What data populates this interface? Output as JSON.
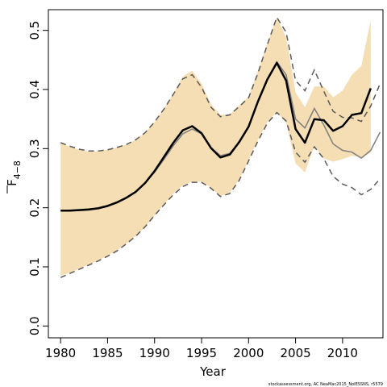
{
  "chart_data": {
    "type": "line",
    "title": "",
    "xlabel": "Year",
    "ylabel": "F̅ 4−8",
    "ylabel_main": "F",
    "ylabel_sub": "4−8",
    "xlim": [
      1978.7,
      2014.3
    ],
    "ylim": [
      -0.02,
      0.535
    ],
    "x_ticks": [
      1980,
      1985,
      1990,
      1995,
      2000,
      2005,
      2010
    ],
    "x_tick_labels": [
      "1980",
      "1985",
      "1990",
      "1995",
      "2000",
      "2005",
      "2010"
    ],
    "y_ticks": [
      0.0,
      0.1,
      0.2,
      0.3,
      0.4,
      0.5
    ],
    "y_tick_labels": [
      "0.0",
      "0.1",
      "0.2",
      "0.3",
      "0.4",
      "0.5"
    ],
    "grid": false,
    "legend": "none",
    "footnote": "stockassessment.org, AC NeaMac2015_NoIESSNS, r5579",
    "colors": {
      "band": "#f5deb3",
      "estimate": "#000000",
      "reference": "#7f7f7f",
      "dashed": "#5a5a5a"
    },
    "x": [
      1980,
      1981,
      1982,
      1983,
      1984,
      1985,
      1986,
      1987,
      1988,
      1989,
      1990,
      1991,
      1992,
      1993,
      1994,
      1995,
      1996,
      1997,
      1998,
      1999,
      2000,
      2001,
      2002,
      2003,
      2004,
      2005,
      2006,
      2007,
      2008,
      2009,
      2010,
      2011,
      2012,
      2013,
      2014
    ],
    "series": [
      {
        "role": "band",
        "lower": [
          0.085,
          0.09,
          0.097,
          0.104,
          0.111,
          0.119,
          0.128,
          0.139,
          0.152,
          0.168,
          0.187,
          0.206,
          0.224,
          0.238,
          0.244,
          0.244,
          0.234,
          0.22,
          0.225,
          0.248,
          0.28,
          0.315,
          0.345,
          0.362,
          0.343,
          0.275,
          0.26,
          0.305,
          0.283,
          0.278,
          0.282,
          0.288,
          0.285,
          0.293,
          null
        ],
        "upper": [
          0.31,
          0.303,
          0.298,
          0.295,
          0.295,
          0.298,
          0.302,
          0.307,
          0.315,
          0.327,
          0.345,
          0.368,
          0.393,
          0.422,
          0.432,
          0.41,
          0.375,
          0.357,
          0.358,
          0.373,
          0.388,
          0.432,
          0.478,
          0.522,
          0.488,
          0.395,
          0.37,
          0.405,
          0.405,
          0.387,
          0.398,
          0.425,
          0.44,
          0.517,
          null
        ]
      },
      {
        "role": "estimate",
        "values": [
          0.195,
          0.195,
          0.196,
          0.197,
          0.199,
          0.203,
          0.209,
          0.217,
          0.227,
          0.242,
          0.262,
          0.286,
          0.31,
          0.331,
          0.338,
          0.326,
          0.301,
          0.285,
          0.29,
          0.311,
          0.337,
          0.38,
          0.417,
          0.445,
          0.415,
          0.333,
          0.31,
          0.35,
          0.348,
          0.33,
          0.338,
          0.357,
          0.36,
          0.402,
          null
        ]
      },
      {
        "role": "reference",
        "values": [
          0.195,
          0.196,
          0.197,
          0.198,
          0.2,
          0.204,
          0.21,
          0.217,
          0.227,
          0.242,
          0.26,
          0.282,
          0.305,
          0.325,
          0.333,
          0.325,
          0.302,
          0.288,
          0.292,
          0.311,
          0.337,
          0.379,
          0.417,
          0.447,
          0.425,
          0.35,
          0.335,
          0.368,
          0.34,
          0.308,
          0.297,
          0.294,
          0.284,
          0.297,
          0.328
        ]
      },
      {
        "role": "dashed-upper",
        "values": [
          0.31,
          0.304,
          0.299,
          0.296,
          0.296,
          0.298,
          0.302,
          0.307,
          0.315,
          0.327,
          0.345,
          0.367,
          0.392,
          0.418,
          0.425,
          0.404,
          0.37,
          0.354,
          0.357,
          0.371,
          0.386,
          0.428,
          0.476,
          0.522,
          0.497,
          0.415,
          0.398,
          0.433,
          0.397,
          0.363,
          0.353,
          0.352,
          0.346,
          0.372,
          0.41
        ]
      },
      {
        "role": "dashed-lower",
        "values": [
          0.082,
          0.089,
          0.096,
          0.103,
          0.11,
          0.118,
          0.127,
          0.139,
          0.152,
          0.168,
          0.187,
          0.205,
          0.222,
          0.236,
          0.243,
          0.243,
          0.233,
          0.219,
          0.224,
          0.246,
          0.279,
          0.313,
          0.343,
          0.361,
          0.347,
          0.294,
          0.277,
          0.303,
          0.283,
          0.253,
          0.24,
          0.234,
          0.222,
          0.231,
          0.249
        ]
      }
    ]
  }
}
